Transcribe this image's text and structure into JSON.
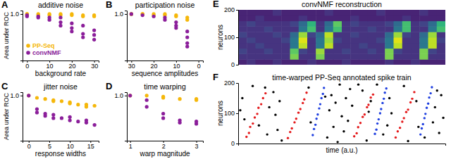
{
  "chart_data": [
    {
      "type": "scatter",
      "panel": "A",
      "title": "additive noise",
      "x_label": "background rate",
      "y_label": "Area under ROC",
      "xlim": [
        -2,
        32
      ],
      "xticks": [
        0,
        10,
        20,
        30
      ],
      "ylim": [
        0.6,
        1.03
      ],
      "yticks": [
        {
          "value": 1.0,
          "label": "1.0"
        }
      ],
      "legend": "lower left",
      "series": [
        {
          "name": "PP-Seq",
          "color": "#f5b70a",
          "marker": "circle",
          "x": [
            0,
            0,
            0,
            5,
            5,
            10,
            10,
            15,
            15,
            20,
            20,
            25,
            25,
            30,
            30
          ],
          "values": [
            1.0,
            1.0,
            0.99,
            1.0,
            0.99,
            1.0,
            0.99,
            1.0,
            0.99,
            0.99,
            1.0,
            0.99,
            0.98,
            0.99,
            0.98
          ]
        },
        {
          "name": "convNMF",
          "color": "#8b1e9a",
          "marker": "circle",
          "x": [
            0,
            0,
            5,
            5,
            10,
            10,
            15,
            15,
            15,
            20,
            20,
            20,
            25,
            25,
            25,
            30,
            30,
            30
          ],
          "values": [
            0.99,
            0.98,
            0.98,
            0.97,
            0.97,
            0.95,
            0.93,
            0.97,
            0.9,
            0.88,
            0.92,
            0.85,
            0.83,
            0.8,
            0.9,
            0.78,
            0.82,
            0.86
          ]
        }
      ]
    },
    {
      "type": "scatter",
      "panel": "B",
      "title": "participation noise",
      "x_label": "sequence amplitudes",
      "xlim": [
        32,
        -2
      ],
      "xticks": [
        30,
        20,
        10,
        0
      ],
      "ylim": [
        0.6,
        1.03
      ],
      "yticks": [
        {
          "value": 1.0,
          "label": "1.0"
        }
      ],
      "series": [
        {
          "color": "#f5b70a",
          "marker": "circle",
          "x": [
            30,
            30,
            25,
            25,
            20,
            20,
            15,
            15,
            10,
            10,
            5,
            5
          ],
          "values": [
            1.0,
            1.0,
            1.0,
            1.0,
            1.0,
            0.99,
            1.0,
            0.99,
            0.99,
            0.98,
            0.97,
            0.95
          ]
        },
        {
          "color": "#8b1e9a",
          "marker": "circle",
          "x": [
            30,
            25,
            20,
            15,
            15,
            10,
            10,
            10,
            5,
            5,
            5,
            5
          ],
          "values": [
            1.0,
            0.99,
            0.98,
            0.97,
            0.95,
            0.93,
            0.9,
            0.88,
            0.85,
            0.8,
            0.75,
            0.72
          ]
        }
      ]
    },
    {
      "type": "scatter",
      "panel": "C",
      "title": "jitter noise",
      "x_label": "response widths",
      "y_label": "Area under ROC",
      "xlim": [
        -1.5,
        17
      ],
      "xticks": [
        0,
        5,
        10,
        15
      ],
      "ylim": [
        0.6,
        1.03
      ],
      "yticks": [
        {
          "value": 1.0,
          "label": "1.0"
        }
      ],
      "series": [
        {
          "color": "#f5b70a",
          "marker": "circle",
          "x": [
            0,
            2,
            4,
            6,
            6,
            8,
            10,
            10,
            12,
            14,
            14,
            16
          ],
          "values": [
            1.0,
            0.98,
            0.97,
            0.96,
            0.95,
            0.95,
            0.94,
            0.93,
            0.92,
            0.92,
            0.9,
            0.91
          ]
        },
        {
          "color": "#8b1e9a",
          "marker": "circle",
          "x": [
            0,
            2,
            2,
            4,
            4,
            6,
            6,
            8,
            10,
            10,
            12,
            14,
            14,
            16
          ],
          "values": [
            1.0,
            0.88,
            0.85,
            0.84,
            0.82,
            0.83,
            0.8,
            0.8,
            0.81,
            0.78,
            0.77,
            0.76,
            0.78,
            0.74
          ]
        }
      ]
    },
    {
      "type": "scatter",
      "panel": "D",
      "title": "time warping",
      "x_label": "warp magnitude",
      "xlim": [
        0.9,
        3.2
      ],
      "xticks": [
        1,
        2,
        3
      ],
      "ylim": [
        0.6,
        1.03
      ],
      "yticks": [
        {
          "value": 1.0,
          "label": "1.0"
        }
      ],
      "series": [
        {
          "color": "#f5b70a",
          "marker": "circle",
          "x": [
            1,
            1.5,
            2,
            2,
            2.5,
            3,
            3
          ],
          "values": [
            1.0,
            1.0,
            0.99,
            0.98,
            0.97,
            0.96,
            0.97
          ]
        },
        {
          "color": "#8b1e9a",
          "marker": "circle",
          "x": [
            1,
            1.5,
            1.5,
            2,
            2,
            2.5,
            2.5,
            3,
            3
          ],
          "values": [
            1.0,
            0.96,
            0.9,
            0.84,
            0.8,
            0.78,
            0.76,
            0.75,
            0.77
          ]
        }
      ]
    },
    {
      "type": "heatmap",
      "panel": "E",
      "title": "convNMF reconstruction",
      "y_label": "neurons",
      "ylim": [
        0,
        200
      ],
      "yticks": [
        0,
        100,
        200
      ],
      "tick_labels": "y",
      "zlim": [
        0,
        1
      ],
      "z": [
        [
          0.1,
          0.15,
          0.1,
          0.1,
          0.15,
          0.1,
          0.1,
          0.1,
          0.15,
          0.1,
          0.1,
          0.1,
          0.15,
          0.1,
          0.1,
          0.1,
          0.1,
          0.15,
          0.1,
          0.1,
          0.15,
          0.1,
          0.1,
          0.1
        ],
        [
          0.15,
          0.15,
          0.15,
          0.15,
          0.15,
          0.15,
          0.8,
          0.15,
          0.15,
          0.8,
          0.15,
          0.15,
          0.15,
          0.15,
          0.15,
          0.15,
          0.15,
          0.8,
          0.15,
          0.15,
          0.15,
          0.8,
          0.15,
          0.15
        ],
        [
          0.2,
          0.15,
          0.15,
          0.2,
          0.15,
          0.15,
          0.75,
          0.2,
          0.15,
          0.85,
          0.15,
          0.15,
          0.2,
          0.15,
          0.15,
          0.2,
          0.15,
          0.8,
          0.2,
          0.15,
          0.15,
          0.8,
          0.2,
          0.15
        ],
        [
          0.15,
          0.15,
          0.2,
          0.15,
          0.15,
          0.15,
          0.4,
          0.9,
          0.15,
          0.4,
          0.9,
          0.15,
          0.15,
          0.15,
          0.2,
          0.15,
          0.15,
          0.4,
          0.9,
          0.15,
          0.15,
          0.4,
          0.9,
          0.15
        ],
        [
          0.15,
          0.2,
          0.15,
          0.15,
          0.15,
          0.2,
          0.4,
          0.95,
          0.15,
          0.4,
          0.85,
          0.2,
          0.15,
          0.15,
          0.15,
          0.15,
          0.2,
          0.4,
          0.95,
          0.15,
          0.15,
          0.4,
          0.9,
          0.2
        ],
        [
          0.2,
          0.15,
          0.15,
          0.15,
          0.2,
          0.15,
          0.35,
          0.85,
          0.2,
          0.35,
          0.9,
          0.15,
          0.15,
          0.2,
          0.15,
          0.15,
          0.15,
          0.35,
          0.85,
          0.2,
          0.15,
          0.35,
          0.85,
          0.15
        ],
        [
          0.15,
          0.15,
          0.15,
          0.2,
          0.15,
          0.15,
          0.15,
          0.4,
          0.7,
          0.15,
          0.4,
          0.7,
          0.15,
          0.15,
          0.15,
          0.2,
          0.15,
          0.15,
          0.4,
          0.7,
          0.15,
          0.15,
          0.4,
          0.7
        ],
        [
          0.15,
          0.2,
          0.15,
          0.15,
          0.15,
          0.15,
          0.2,
          0.35,
          0.65,
          0.15,
          0.35,
          0.75,
          0.15,
          0.2,
          0.15,
          0.15,
          0.15,
          0.2,
          0.35,
          0.7,
          0.15,
          0.2,
          0.35,
          0.65
        ],
        [
          0.1,
          0.1,
          0.15,
          0.1,
          0.1,
          0.1,
          0.1,
          0.15,
          0.1,
          0.1,
          0.1,
          0.1,
          0.1,
          0.15,
          0.1,
          0.1,
          0.1,
          0.1,
          0.1,
          0.15,
          0.1,
          0.1,
          0.1,
          0.1
        ],
        [
          0.1,
          0.1,
          0.1,
          0.1,
          0.15,
          0.1,
          0.1,
          0.1,
          0.1,
          0.1,
          0.15,
          0.1,
          0.1,
          0.1,
          0.1,
          0.1,
          0.15,
          0.1,
          0.1,
          0.1,
          0.1,
          0.15,
          0.1,
          0.1
        ]
      ]
    },
    {
      "type": "scatter",
      "panel": "F",
      "title": "time-warped PP-Seq annotated spike train",
      "x_label": "time (a.u.)",
      "y_label": "neurons",
      "xlim": [
        0,
        100
      ],
      "ylim": [
        0,
        200
      ],
      "yticks": [
        0,
        100,
        200
      ],
      "tick_labels": "y",
      "series": [
        {
          "color": "#000000",
          "marker": "circle",
          "x": [
            2,
            3,
            7,
            10,
            14,
            15,
            17,
            18,
            19,
            20,
            21,
            34,
            35,
            43,
            44,
            45,
            46,
            47,
            48,
            49,
            50,
            51,
            52,
            53,
            54,
            55,
            60,
            62,
            63,
            64,
            67,
            70,
            72,
            73,
            74,
            80,
            82,
            86,
            87,
            90,
            94,
            95,
            96,
            97,
            98,
            99,
            1,
            13,
            42,
            58
          ],
          "values": [
            150,
            80,
            190,
            60,
            30,
            120,
            170,
            95,
            45,
            140,
            10,
            185,
            70,
            20,
            110,
            160,
            55,
            135,
            5,
            195,
            90,
            40,
            150,
            75,
            180,
            125,
            175,
            10,
            105,
            140,
            195,
            30,
            60,
            150,
            100,
            190,
            8,
            140,
            55,
            20,
            70,
            120,
            175,
            35,
            160,
            85,
            110,
            185,
            155,
            195
          ]
        },
        {
          "color": "#e41a1c",
          "marker": "circle",
          "x": [
            4,
            5.2,
            5.8,
            7.1,
            8,
            9.2,
            9.8,
            11.1,
            12,
            13.2,
            24,
            25.1,
            25.9,
            27.2,
            28,
            29.1,
            30,
            31.2,
            31.9,
            33,
            56,
            57.2,
            57.9,
            59,
            60.1,
            61,
            62.2,
            62.9,
            64,
            65.1,
            76,
            77,
            78.1,
            79.2,
            80,
            81.1,
            82,
            83.2,
            84,
            85
          ],
          "values": [
            22,
            35,
            55,
            66,
            86,
            98,
            118,
            130,
            150,
            166,
            18,
            38,
            50,
            70,
            82,
            102,
            114,
            134,
            146,
            168,
            24,
            34,
            54,
            68,
            88,
            96,
            120,
            128,
            152,
            162,
            20,
            40,
            52,
            72,
            84,
            104,
            112,
            136,
            148,
            170
          ]
        },
        {
          "color": "#1f3fe0",
          "marker": "circle",
          "x": [
            36,
            36.6,
            37.3,
            37.8,
            38.4,
            39.1,
            39.6,
            40.2,
            40.9,
            41.4,
            66,
            66.7,
            67.2,
            67.8,
            68.5,
            69,
            69.7,
            70.3,
            70.8,
            71.5,
            88,
            88.6,
            89.2,
            89.9,
            90.4,
            91,
            91.7,
            92.2,
            92.9,
            93.5
          ],
          "values": [
            28,
            48,
            62,
            82,
            96,
            116,
            130,
            150,
            164,
            184,
            32,
            46,
            66,
            80,
            100,
            114,
            134,
            148,
            168,
            182,
            30,
            50,
            64,
            84,
            98,
            118,
            132,
            152,
            166,
            186
          ]
        }
      ]
    }
  ]
}
